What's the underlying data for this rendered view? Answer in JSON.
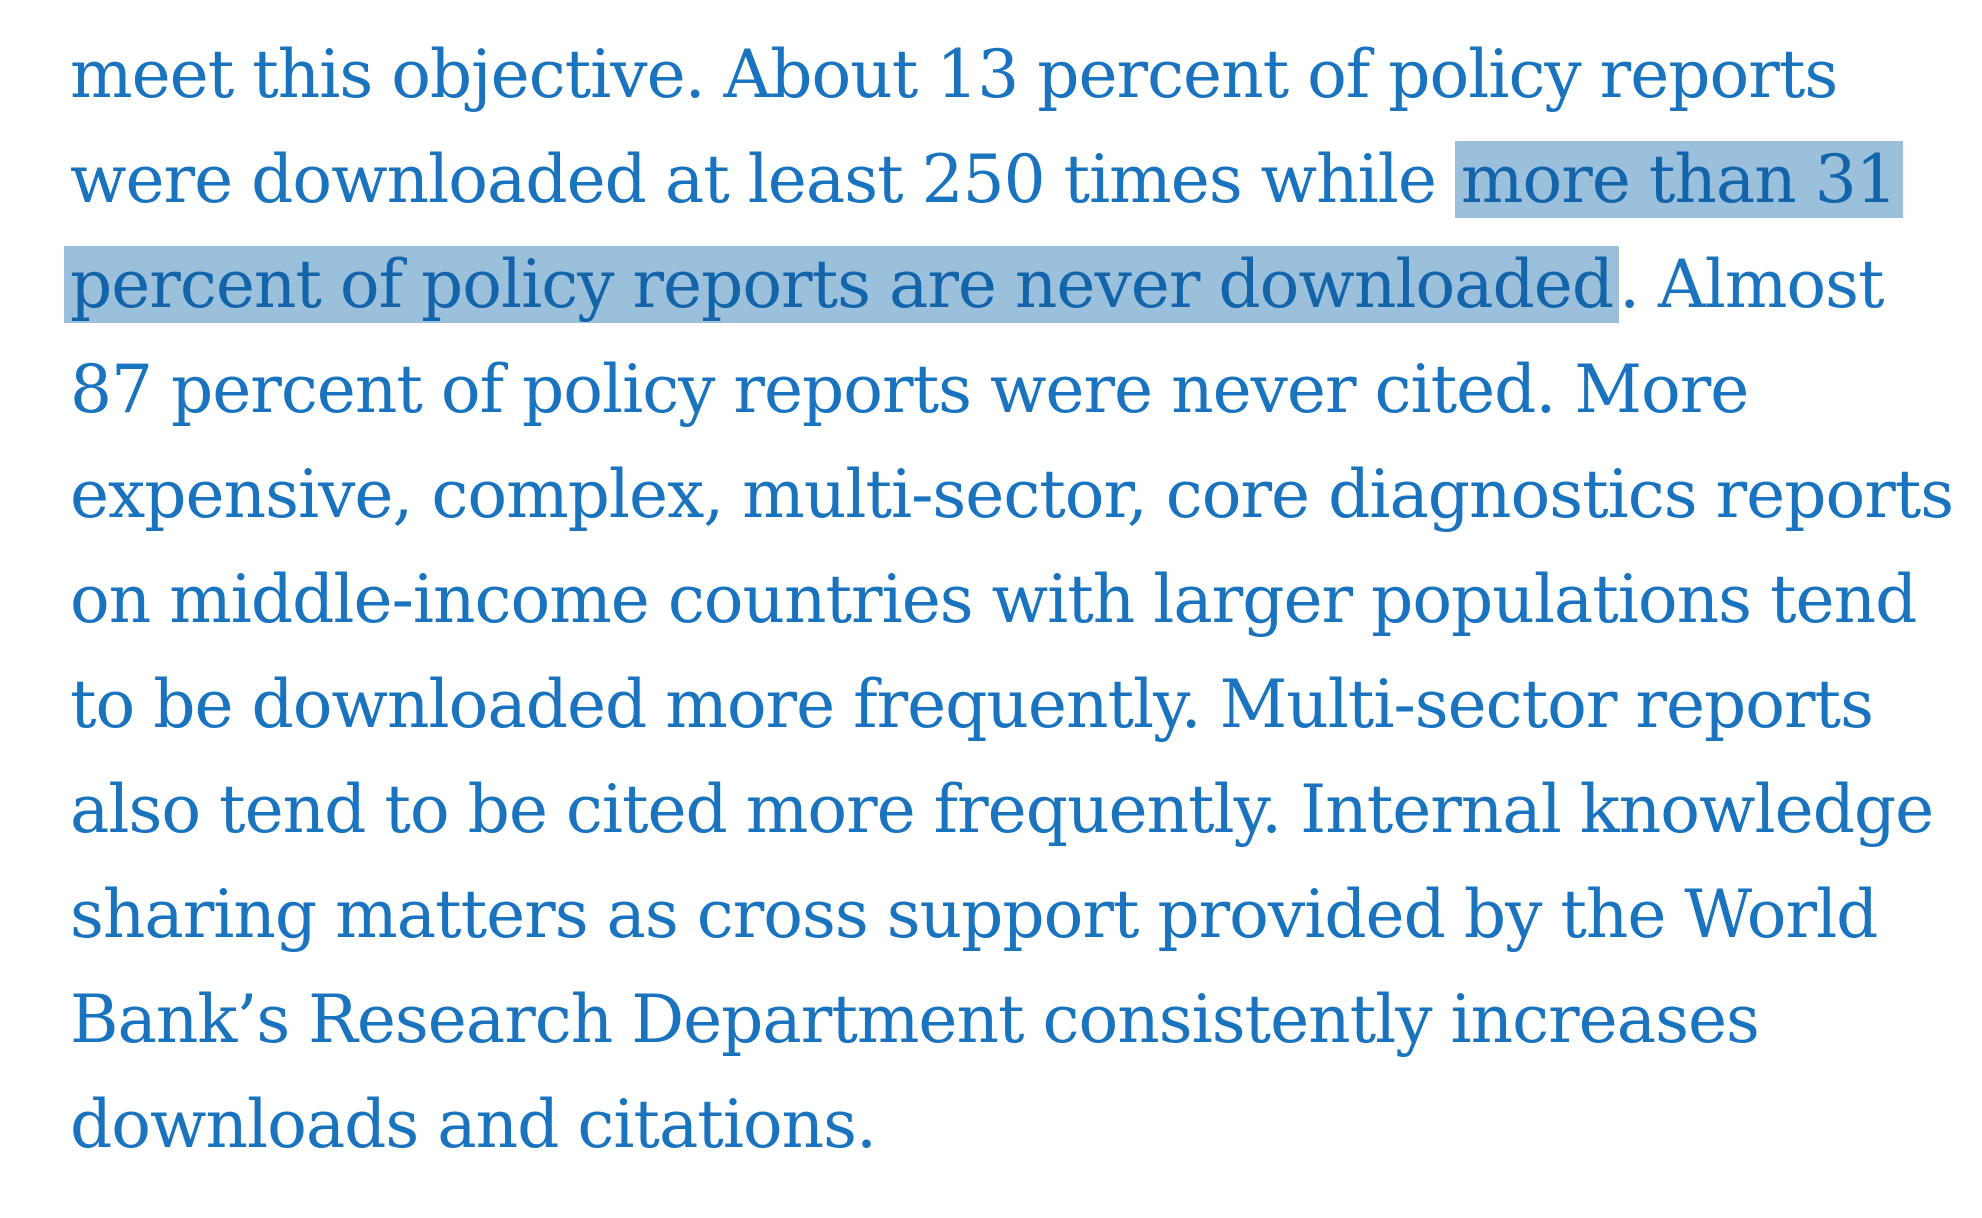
{
  "document": {
    "lines": [
      {
        "parts": [
          "meet this objective. About 13 percent of policy reports"
        ]
      },
      {
        "parts": [
          "were downloaded at least 250 times while ",
          "more than 31"
        ]
      },
      {
        "parts": [
          "percent of policy reports are never downloaded",
          ". Almost"
        ]
      },
      {
        "parts": [
          "87 percent of policy reports were never cited. More"
        ]
      },
      {
        "parts": [
          "expensive, complex, multi-sector, core diagnostics reports"
        ]
      },
      {
        "parts": [
          "on middle-income countries with larger populations tend"
        ]
      },
      {
        "parts": [
          "to be downloaded more frequently. Multi-sector reports"
        ]
      },
      {
        "parts": [
          "also tend to be cited more frequently. Internal knowledge"
        ]
      },
      {
        "parts": [
          "sharing matters as cross support provided by the World"
        ]
      },
      {
        "parts": [
          "Bank’s Research Department consistently increases"
        ]
      },
      {
        "parts": [
          "downloads and citations."
        ]
      }
    ],
    "highlight_color": "#9bc0dc",
    "text_color": "#1a73be"
  }
}
